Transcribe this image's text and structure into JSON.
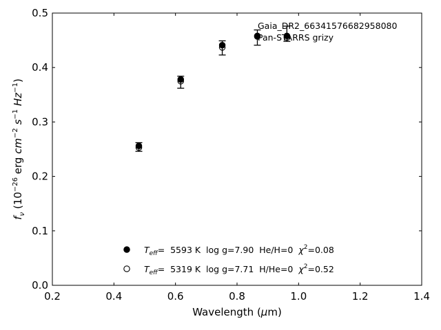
{
  "chart_data": {
    "type": "scatter",
    "xlabel": "Wavelength (μm)",
    "ylabel": "f_ν (10^-26 erg cm^-2 s^-1 Hz^-1)",
    "xlim": [
      0.2,
      1.4
    ],
    "ylim": [
      0.0,
      0.5
    ],
    "x_ticks": [
      "0.2",
      "0.4",
      "0.6",
      "0.8",
      "1.0",
      "1.2",
      "1.4"
    ],
    "y_ticks": [
      "0.0",
      "0.1",
      "0.2",
      "0.3",
      "0.4",
      "0.5"
    ],
    "grid": false,
    "annotations": [
      "Gaia_DR2_66341576682958080",
      "Pan-STARRS grizy"
    ],
    "observed": {
      "x": [
        0.481,
        0.617,
        0.752,
        0.866,
        0.962
      ],
      "y": [
        0.254,
        0.373,
        0.436,
        0.455,
        0.462
      ],
      "err": [
        0.008,
        0.011,
        0.013,
        0.014,
        0.014
      ]
    },
    "series": [
      {
        "name": "Teff= 5593 K log g=7.90 He/H=0 χ²=0.08",
        "marker": "filled-circle",
        "x": [
          0.481,
          0.617,
          0.752,
          0.866,
          0.962
        ],
        "y": [
          0.256,
          0.378,
          0.441,
          0.458,
          0.458
        ]
      },
      {
        "name": "Teff= 5319 K log g=7.71 H/He=0 χ²=0.52",
        "marker": "open-circle",
        "x": [
          0.481,
          0.617,
          0.752,
          0.866,
          0.962
        ],
        "y": [
          0.253,
          0.375,
          0.437,
          0.457,
          0.455
        ]
      }
    ],
    "legend": [
      {
        "marker": "filled-circle",
        "teff_label": "T",
        "teff_sub": "eff",
        "text": "=  5593 K  log g=7.90  He/H=0  ",
        "chi_label": "χ",
        "chi_sup": "2",
        "chi_text": "=0.08"
      },
      {
        "marker": "open-circle",
        "teff_label": "T",
        "teff_sub": "eff",
        "text": "=  5319 K  log g=7.71  H/He=0  ",
        "chi_label": "χ",
        "chi_sup": "2",
        "chi_text": "=0.52"
      }
    ],
    "legend_position": "lower-center"
  }
}
